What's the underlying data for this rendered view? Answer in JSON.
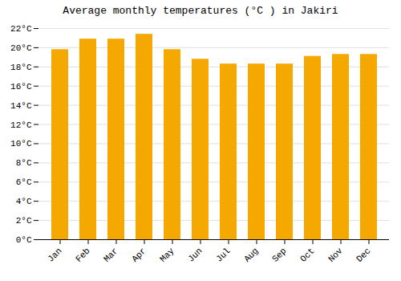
{
  "chart_data": {
    "type": "bar",
    "title": "Average monthly temperatures (°C ) in Jakiri",
    "categories": [
      "Jan",
      "Feb",
      "Mar",
      "Apr",
      "May",
      "Jun",
      "Jul",
      "Aug",
      "Sep",
      "Oct",
      "Nov",
      "Dec"
    ],
    "values": [
      19.8,
      20.9,
      20.9,
      21.4,
      19.8,
      18.8,
      18.3,
      18.3,
      18.3,
      19.1,
      19.3,
      19.3
    ],
    "color": "#F5A800",
    "ylim": [
      0,
      22
    ],
    "yticks": [
      {
        "value": 0,
        "label": "0°C"
      },
      {
        "value": 2,
        "label": "2°C"
      },
      {
        "value": 4,
        "label": "4°C"
      },
      {
        "value": 6,
        "label": "6°C"
      },
      {
        "value": 8,
        "label": "8°C"
      },
      {
        "value": 10,
        "label": "10°C"
      },
      {
        "value": 12,
        "label": "12°C"
      },
      {
        "value": 14,
        "label": "14°C"
      },
      {
        "value": 16,
        "label": "16°C"
      },
      {
        "value": 18,
        "label": "18°C"
      },
      {
        "value": 20,
        "label": "20°C"
      },
      {
        "value": 22,
        "label": "22°C"
      }
    ],
    "grid": true
  }
}
